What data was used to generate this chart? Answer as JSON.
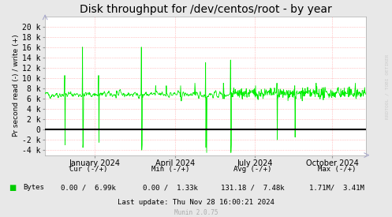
{
  "title": "Disk throughput for /dev/centos/root - by year",
  "ylabel": "Pr second read (-) / write (+)",
  "background_color": "#e8e8e8",
  "plot_bg_color": "#ffffff",
  "grid_color": "#ff9999",
  "line_color": "#00ee00",
  "zero_line_color": "#000000",
  "ylim": [
    -5000,
    22000
  ],
  "yticks": [
    -4000,
    -2000,
    0,
    2000,
    4000,
    6000,
    8000,
    10000,
    12000,
    14000,
    16000,
    18000,
    20000
  ],
  "ytick_labels": [
    "-4 k",
    "-2 k",
    "0",
    "2 k",
    "4 k",
    "6 k",
    "8 k",
    "10 k",
    "12 k",
    "14 k",
    "16 k",
    "18 k",
    "20 k"
  ],
  "xtick_positions": [
    0.155,
    0.405,
    0.655,
    0.895
  ],
  "xtick_labels": [
    "January 2024",
    "April 2024",
    "July 2024",
    "October 2024"
  ],
  "legend_label": "Bytes",
  "legend_color": "#00cc00",
  "footer_cur": "Cur (-/+)",
  "footer_cur_val": "0.00 /  6.99k",
  "footer_min": "Min (-/+)",
  "footer_min_val": "0.00 /  1.33k",
  "footer_avg": "Avg (-/+)",
  "footer_avg_val": "131.18 /  7.48k",
  "footer_max": "Max (-/+)",
  "footer_max_val": "1.71M/  3.41M",
  "footer_update": "Last update: Thu Nov 28 16:00:21 2024",
  "footer_munin": "Munin 2.0.75",
  "watermark": "RRDTOOL / TOBI OETIKER",
  "title_fontsize": 10,
  "axis_fontsize": 7,
  "footer_fontsize": 6.5,
  "seed": 42
}
